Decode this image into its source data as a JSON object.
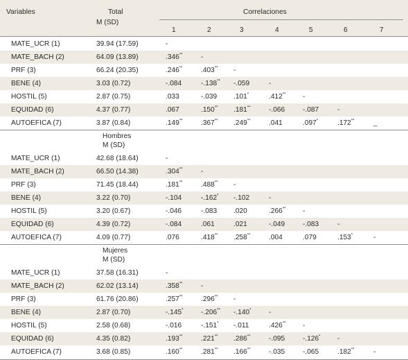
{
  "header": {
    "variables": "Variables",
    "total": "Total",
    "msd": "M (SD)",
    "correlaciones": "Correlaciones",
    "cols": [
      "1",
      "2",
      "3",
      "4",
      "5",
      "6",
      "7"
    ]
  },
  "sections": [
    {
      "id": "total",
      "rows": [
        {
          "label": "MATE_UCR (1)",
          "msd": "39.94 (17.59)",
          "cells": [
            "-",
            "",
            "",
            "",
            "",
            "",
            ""
          ]
        },
        {
          "label": "MATE_BACH (2)",
          "msd": "64.09 (13.89)",
          "cells": [
            ".346**",
            "-",
            "",
            "",
            "",
            "",
            ""
          ]
        },
        {
          "label": "PRF (3)",
          "msd": "66.24 (20.35)",
          "cells": [
            ".246**",
            ".403**",
            "-",
            "",
            "",
            "",
            ""
          ]
        },
        {
          "label": "BENE (4)",
          "msd": "3.03 (0.72)",
          "cells": [
            "-.084",
            "-.138**",
            "-.059",
            "-",
            "",
            "",
            ""
          ]
        },
        {
          "label": "HOSTIL (5)",
          "msd": "2.87 (0.75)",
          "cells": [
            ".033",
            "-.039",
            ".101*",
            ".412**",
            "-",
            "",
            ""
          ]
        },
        {
          "label": "EQUIDAD (6)",
          "msd": "4.37 (0.77)",
          "cells": [
            ".067",
            ".150**",
            ".181**",
            "-.066",
            "-.087",
            "-",
            ""
          ]
        },
        {
          "label": "AUTOEFICA (7)",
          "msd": "3.87 (0.84)",
          "cells": [
            ".149**",
            ".367**",
            ".249**",
            ".041",
            ".097*",
            ".172**",
            "_"
          ]
        }
      ]
    },
    {
      "id": "hombres",
      "title": "Hombres",
      "msd": "M (SD)",
      "rows": [
        {
          "label": "MATE_UCR (1)",
          "msd": "42.68 (18.64)",
          "cells": [
            "-",
            "",
            "",
            "",
            "",
            "",
            ""
          ]
        },
        {
          "label": "MATE_BACH (2)",
          "msd": "66.50 (14.38)",
          "cells": [
            ".304**",
            "-",
            "",
            "",
            "",
            "",
            ""
          ]
        },
        {
          "label": "PRF (3)",
          "msd": "71.45 (18.44)",
          "cells": [
            ".181**",
            ".488**",
            "-",
            "",
            "",
            "",
            ""
          ]
        },
        {
          "label": "BENE (4)",
          "msd": "3.22 (0.70)",
          "cells": [
            "-.104",
            "-.162*",
            "-.102",
            "-",
            "",
            "",
            ""
          ]
        },
        {
          "label": "HOSTIL (5)",
          "msd": "3.20 (0.67)",
          "cells": [
            "-.046",
            "-.083",
            ".020",
            ".266**",
            "-",
            "",
            ""
          ]
        },
        {
          "label": "EQUIDAD (6)",
          "msd": "4.39 (0.72)",
          "cells": [
            "-.084",
            ".061",
            ".021",
            "-.049",
            "-.083",
            "-",
            ""
          ]
        },
        {
          "label": "AUTOEFICA (7)",
          "msd": "4.09 (0.77)",
          "cells": [
            ".076",
            ".418**",
            ".258**",
            ".004",
            ".079",
            ".153*",
            "-"
          ]
        }
      ]
    },
    {
      "id": "mujeres",
      "title": "Mujeres",
      "msd": "M (SD)",
      "rows": [
        {
          "label": "MATE_UCR (1)",
          "msd": "37.58 (16.31)",
          "cells": [
            "-",
            "",
            "",
            "",
            "",
            "",
            ""
          ]
        },
        {
          "label": "MATE_BACH (2)",
          "msd": "62.02 (13.14)",
          "cells": [
            ".358**",
            "-",
            "",
            "",
            "",
            "",
            ""
          ]
        },
        {
          "label": "PRF (3)",
          "msd": "61.76 (20.86)",
          "cells": [
            ".257**",
            ".296**",
            "-",
            "",
            "",
            "",
            ""
          ]
        },
        {
          "label": "BENE (4)",
          "msd": "2.87 (0.70)",
          "cells": [
            "-.145*",
            "-.206**",
            "-.140*",
            "-",
            "",
            "",
            ""
          ]
        },
        {
          "label": "HOSTIL (5)",
          "msd": "2.58 (0.68)",
          "cells": [
            "-.016",
            "-.151*",
            "-.011",
            ".426**",
            "-",
            "",
            ""
          ]
        },
        {
          "label": "EQUIDAD (6)",
          "msd": "4.35 (0.82)",
          "cells": [
            ".193**",
            ".221**",
            ".286**",
            "-.095",
            "-.126*",
            "-",
            ""
          ]
        },
        {
          "label": "AUTOEFICA (7)",
          "msd": "3.68 (0.85)",
          "cells": [
            ".160**",
            ".281**",
            ".166**",
            "-.035",
            "-.065",
            ".182**",
            "-"
          ]
        }
      ]
    }
  ]
}
